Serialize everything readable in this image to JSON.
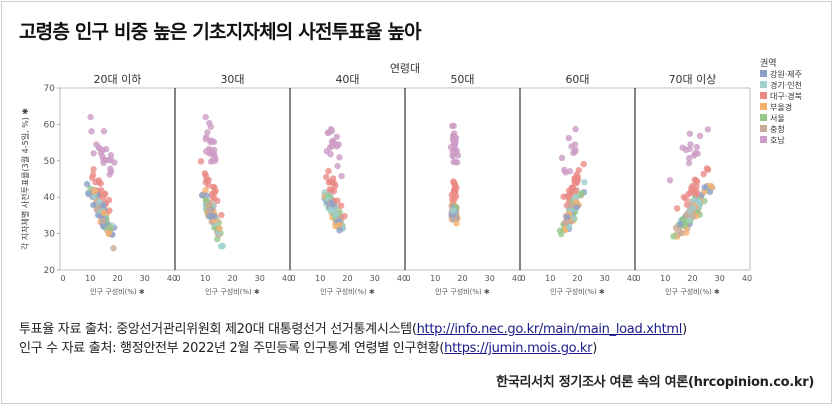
{
  "title": "고령층 인구 비중 높은 기초지자체의 사전투표율 높아",
  "chart_data": {
    "type": "scatter",
    "facet_title": "연령대",
    "facets": [
      "20대 이하",
      "30대",
      "40대",
      "50대",
      "60대",
      "70대 이상"
    ],
    "xlabel": "인구 구성비(%) ✱",
    "ylabel": "각 지자체별 사전투표율(3월 4-5일, %) ✱",
    "xlim": [
      0,
      40
    ],
    "ylim": [
      20,
      70
    ],
    "xticks": [
      0,
      10,
      20,
      30,
      40
    ],
    "yticks": [
      20,
      30,
      40,
      50,
      60,
      70
    ],
    "legend_title": "권역",
    "legend_position": "right",
    "grid": false,
    "series": [
      {
        "name": "강원·제주",
        "color": "#8ea0c9"
      },
      {
        "name": "경기·인천",
        "color": "#9fcfcf"
      },
      {
        "name": "대구·경북",
        "color": "#ea8a84"
      },
      {
        "name": "부울경",
        "color": "#f6b06e"
      },
      {
        "name": "서울",
        "color": "#93c88a"
      },
      {
        "name": "충청",
        "color": "#c9aa98"
      },
      {
        "name": "호남",
        "color": "#cc9cc6"
      }
    ],
    "facet_profiles": [
      {
        "facet": "20대 이하",
        "x_center": 14,
        "x_spread": 6,
        "slope": -1.5
      },
      {
        "facet": "30대",
        "x_center": 12,
        "x_spread": 5,
        "slope": -1.8
      },
      {
        "facet": "40대",
        "x_center": 15,
        "x_spread": 5,
        "slope": -1.6
      },
      {
        "facet": "50대",
        "x_center": 17,
        "x_spread": 1.5,
        "slope": -0.4
      },
      {
        "facet": "60대",
        "x_center": 18,
        "x_spread": 5,
        "slope": 1.5
      },
      {
        "facet": "70대 이상",
        "x_center": 20,
        "x_spread": 9,
        "slope": 1.0
      }
    ]
  },
  "sources": {
    "line1_text": "투표율 자료 출처: 중앙선거관리위원회 제20대 대통령선거 선거통계시스템(",
    "line1_link": "http://info.nec.go.kr/main/main_load.xhtml",
    "line1_end": ")",
    "line2_text": "인구 수 자료 출처: 행정안전부 2022년 2월 주민등록 인구통계 연령별 인구현황(",
    "line2_link": "https://jumin.mois.go.kr",
    "line2_end": ")"
  },
  "credit": "한국리서치 정기조사 여론 속의 여론(hrcopinion.co.kr)"
}
